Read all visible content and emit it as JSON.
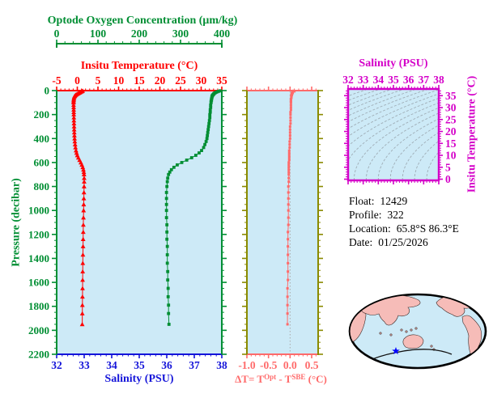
{
  "colors": {
    "green": "#008E33",
    "red": "#FF0000",
    "blue": "#1515D9",
    "salmon": "#FF6B6B",
    "olive": "#8A8A00",
    "magenta": "#D400C8",
    "panel_bg": "#CDEAF7",
    "contour_gray": "#9FADB6",
    "zero_line_gray": "#AAAAAA",
    "land_pink": "#F6BCB8",
    "coast_dark": "#3A2A28",
    "map_outline": "#000000",
    "star_blue": "#0000FF",
    "text_black": "#000000"
  },
  "info": {
    "rows": [
      {
        "label": "Float:",
        "value": "12429"
      },
      {
        "label": "Profile:",
        "value": "322"
      },
      {
        "label": "Location:",
        "value": "65.8°S  86.3°E"
      },
      {
        "label": "Date:",
        "value": "01/25/2026"
      }
    ]
  },
  "map": {
    "description": "world map, Pacific-centered elliptical projection",
    "marker": "blue star at float location 65.8S 86.3E"
  },
  "chart_data": [
    {
      "id": "main_profiles",
      "type": "line",
      "axes": {
        "oxygen": {
          "label": "Optode Oxygen Concentration (μm/kg)",
          "ticks": [
            0,
            100,
            200,
            300,
            400
          ],
          "lim": [
            0,
            400
          ],
          "position": "top-floating"
        },
        "temperature": {
          "label": "Insitu Temperature (°C)",
          "ticks": [
            -5,
            0,
            5,
            10,
            15,
            20,
            25,
            30,
            35
          ],
          "lim": [
            -5,
            35
          ],
          "position": "top"
        },
        "pressure": {
          "label": "Pressure (decibar)",
          "ticks": [
            0,
            200,
            400,
            600,
            800,
            1000,
            1200,
            1400,
            1600,
            1800,
            2000,
            2200
          ],
          "lim": [
            0,
            2200
          ],
          "position": "left"
        },
        "salinity": {
          "label": "Salinity (PSU)",
          "ticks": [
            32,
            33,
            34,
            35,
            36,
            37,
            38
          ],
          "lim": [
            32,
            38
          ],
          "position": "bottom"
        }
      },
      "pressure_dbar": [
        2,
        6,
        10,
        14,
        18,
        22,
        26,
        30,
        34,
        38,
        42,
        46,
        50,
        60,
        70,
        80,
        90,
        100,
        120,
        140,
        160,
        180,
        200,
        225,
        250,
        275,
        300,
        325,
        350,
        375,
        400,
        425,
        450,
        475,
        500,
        520,
        540,
        560,
        580,
        600,
        620,
        640,
        660,
        680,
        700,
        730,
        760,
        800,
        850,
        900,
        950,
        1000,
        1060,
        1120,
        1180,
        1240,
        1300,
        1370,
        1440,
        1510,
        1580,
        1650,
        1720,
        1790,
        1860,
        1950
      ],
      "series": [
        {
          "name": "insitu_temperature",
          "axis": "temperature",
          "marker": "triangle",
          "values": [
            1.3,
            1.1,
            0.9,
            0.7,
            0.5,
            0.3,
            0.1,
            -0.1,
            -0.3,
            -0.45,
            -0.55,
            -0.65,
            -0.72,
            -0.8,
            -0.85,
            -0.88,
            -0.9,
            -0.9,
            -0.9,
            -0.88,
            -0.87,
            -0.86,
            -0.85,
            -0.83,
            -0.82,
            -0.8,
            -0.78,
            -0.76,
            -0.73,
            -0.7,
            -0.66,
            -0.61,
            -0.54,
            -0.45,
            -0.32,
            -0.18,
            0.0,
            0.25,
            0.55,
            0.85,
            1.1,
            1.32,
            1.48,
            1.58,
            1.63,
            1.66,
            1.66,
            1.64,
            1.61,
            1.58,
            1.55,
            1.52,
            1.49,
            1.46,
            1.44,
            1.41,
            1.39,
            1.36,
            1.33,
            1.31,
            1.29,
            1.27,
            1.25,
            1.23,
            1.21,
            1.19
          ]
        },
        {
          "name": "optode_oxygen",
          "axis": "oxygen",
          "marker": "square",
          "values": [
            396,
            392,
            389,
            386,
            384,
            382,
            381,
            380,
            379,
            378,
            377,
            377,
            376,
            376,
            375,
            375,
            374,
            374,
            373,
            373,
            372,
            372,
            371,
            371,
            370,
            369,
            368,
            367,
            366,
            365,
            364,
            362,
            359,
            356,
            351,
            345,
            337,
            327,
            315,
            303,
            292,
            284,
            278,
            274,
            271,
            269,
            268,
            267,
            266,
            266,
            266,
            266,
            266,
            267,
            267,
            267,
            268,
            268,
            268,
            269,
            269,
            270,
            270,
            271,
            271,
            272
          ]
        }
      ]
    },
    {
      "id": "delta_t",
      "type": "line",
      "xlabel_parts": {
        "prefix": "ΔT= T",
        "sup1": "Opt",
        "mid": " - T",
        "sup2": "SBE",
        "suffix": " (°C)"
      },
      "x_ticks": [
        -1.0,
        -0.5,
        0.0,
        0.5
      ],
      "xlim": [
        -1.0,
        0.65
      ],
      "zero_line": true,
      "marker": "square",
      "values": [
        0.08,
        0.1,
        0.06,
        0.05,
        0.06,
        0.04,
        0.05,
        0.04,
        0.03,
        0.04,
        0.03,
        0.03,
        0.03,
        0.03,
        0.02,
        0.02,
        0.02,
        0.02,
        0.02,
        0.02,
        0.02,
        0.01,
        0.01,
        0.01,
        0.01,
        0.01,
        0.0,
        0.0,
        0.0,
        0.0,
        0.0,
        -0.01,
        -0.01,
        -0.01,
        -0.02,
        -0.02,
        -0.02,
        -0.02,
        -0.02,
        -0.03,
        -0.03,
        -0.03,
        -0.03,
        -0.03,
        -0.03,
        -0.03,
        -0.03,
        -0.04,
        -0.04,
        -0.04,
        -0.04,
        -0.04,
        -0.04,
        -0.04,
        -0.05,
        -0.05,
        -0.05,
        -0.05,
        -0.05,
        -0.05,
        -0.05,
        -0.06,
        -0.06,
        -0.06,
        -0.06,
        -0.06
      ]
    },
    {
      "id": "ts_isopycnals",
      "type": "contour",
      "title": "Salinity (PSU)",
      "right_label": "Insitu Temperature (°C)",
      "x_ticks": [
        32,
        33,
        34,
        35,
        36,
        37,
        38
      ],
      "y_ticks": [
        0,
        5,
        10,
        15,
        20,
        25,
        30,
        35
      ],
      "xlim": [
        32,
        38
      ],
      "ylim": [
        -0.5,
        37.8
      ],
      "contour_levels": 18,
      "note": "gray dashed isopycnal curves; no profile points visible"
    }
  ]
}
